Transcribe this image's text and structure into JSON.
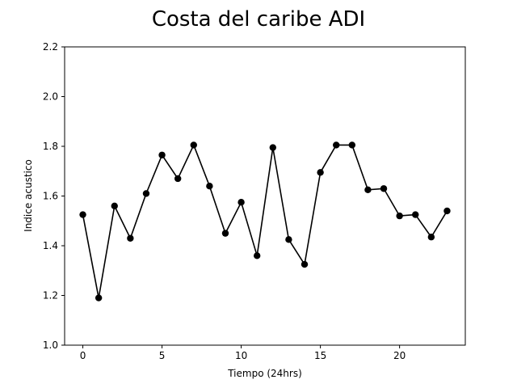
{
  "chart_data": {
    "type": "line",
    "title": "Costa del caribe ADI",
    "xlabel": "Tiempo (24hrs)",
    "ylabel": "Indice acustico",
    "xlim": [
      -1.15,
      24.15
    ],
    "ylim": [
      1.0,
      2.2
    ],
    "x_ticks": [
      0,
      5,
      10,
      15,
      20
    ],
    "y_ticks": [
      1.0,
      1.2,
      1.4,
      1.6,
      1.8,
      2.0,
      2.2
    ],
    "y_tick_labels": [
      "1.0",
      "1.2",
      "1.4",
      "1.6",
      "1.8",
      "2.0",
      "2.2"
    ],
    "grid": false,
    "series": [
      {
        "x": [
          0,
          1,
          2,
          3,
          4,
          5,
          6,
          7,
          8,
          9,
          10,
          11,
          12,
          13,
          14,
          15,
          16,
          17,
          18,
          19,
          20,
          21,
          22,
          23
        ],
        "values": [
          1.525,
          1.19,
          1.56,
          1.43,
          1.61,
          1.765,
          1.67,
          1.805,
          1.64,
          1.45,
          1.575,
          1.36,
          1.795,
          1.425,
          1.325,
          1.695,
          1.805,
          1.805,
          1.625,
          1.63,
          1.52,
          1.525,
          1.435,
          1.54
        ],
        "color": "#000000",
        "marker": "circle"
      }
    ]
  }
}
